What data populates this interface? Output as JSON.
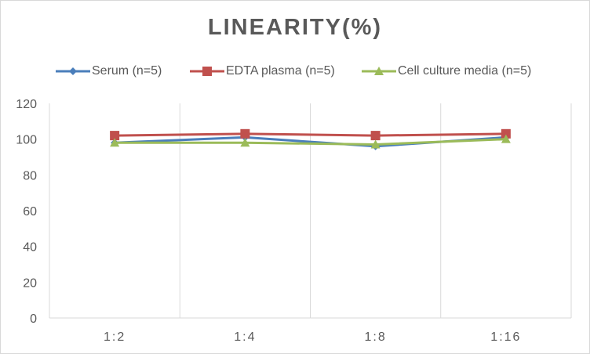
{
  "chart_data": {
    "type": "line",
    "title": "LINEARITY(%)",
    "categories": [
      "1:2",
      "1:4",
      "1:8",
      "1:16"
    ],
    "ylim": [
      0,
      120
    ],
    "yticks": [
      0,
      20,
      40,
      60,
      80,
      100,
      120
    ],
    "grid": "vertical gridlines between categories",
    "legend_position": "top",
    "series": [
      {
        "name": "Serum (n=5)",
        "values": [
          98,
          101,
          96,
          101
        ],
        "color": "#4a7ebb",
        "marker": "diamond"
      },
      {
        "name": "EDTA plasma (n=5)",
        "values": [
          102,
          103,
          102,
          103
        ],
        "color": "#c0504d",
        "marker": "square"
      },
      {
        "name": "Cell culture media (n=5)",
        "values": [
          98,
          98,
          97,
          100
        ],
        "color": "#9bbb59",
        "marker": "triangle"
      }
    ]
  }
}
